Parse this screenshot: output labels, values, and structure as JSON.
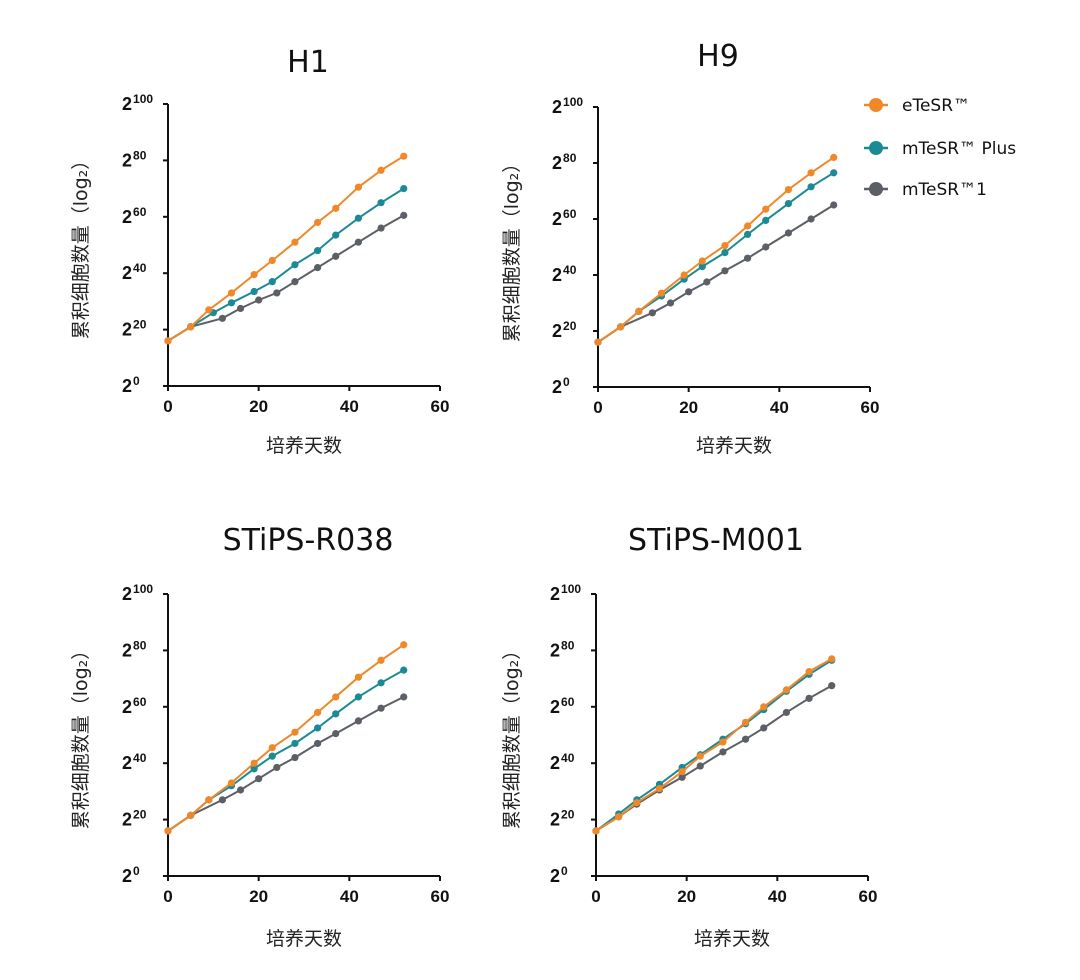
{
  "legend": [
    {
      "name": "eTeSR™",
      "color": "#f0882a"
    },
    {
      "name": "mTeSR™ Plus",
      "color": "#1b8a96"
    },
    {
      "name": "mTeSR™1",
      "color": "#5b5f66"
    }
  ],
  "chart_data": [
    {
      "type": "line",
      "title": "H1",
      "xlabel": "培养天数",
      "ylabel": "累积细胞数量",
      "ylabel_suffix": "（log₂）",
      "xlim": [
        0,
        60
      ],
      "ylim": [
        0,
        100
      ],
      "xticks": [
        "0",
        "20",
        "40",
        "60"
      ],
      "yticks": [
        {
          "base": "2",
          "exp": "0",
          "value": 0
        },
        {
          "base": "2",
          "exp": "20",
          "value": 20
        },
        {
          "base": "2",
          "exp": "40",
          "value": 40
        },
        {
          "base": "2",
          "exp": "60",
          "value": 60
        },
        {
          "base": "2",
          "exp": "80",
          "value": 80
        },
        {
          "base": "2",
          "exp": "100",
          "value": 100
        }
      ],
      "series": [
        {
          "name": "eTeSR™",
          "x": [
            0,
            5,
            9,
            14,
            19,
            23,
            28,
            33,
            37,
            42,
            47,
            52
          ],
          "y": [
            16,
            21,
            27,
            33,
            39.5,
            44.5,
            51,
            58,
            63,
            70.5,
            76.5,
            81.5
          ]
        },
        {
          "name": "mTeSR™ Plus",
          "x": [
            0,
            5,
            10,
            14,
            19,
            23,
            28,
            33,
            37,
            42,
            47,
            52
          ],
          "y": [
            16,
            21,
            26,
            29.5,
            33.5,
            37,
            43,
            48,
            53.5,
            59.5,
            65,
            70
          ]
        },
        {
          "name": "mTeSR™1",
          "x": [
            0,
            5,
            12,
            16,
            20,
            24,
            28,
            33,
            37,
            42,
            47,
            52
          ],
          "y": [
            16,
            21,
            24,
            27.5,
            30.5,
            33,
            37,
            42,
            46,
            51,
            56,
            60.5
          ]
        }
      ]
    },
    {
      "type": "line",
      "title": "H9",
      "xlabel": "培养天数",
      "ylabel": "累积细胞数量",
      "ylabel_suffix": "（log₂）",
      "xlim": [
        0,
        60
      ],
      "ylim": [
        0,
        100
      ],
      "xticks": [
        "0",
        "20",
        "40",
        "60"
      ],
      "yticks": [
        {
          "base": "2",
          "exp": "0",
          "value": 0
        },
        {
          "base": "2",
          "exp": "20",
          "value": 20
        },
        {
          "base": "2",
          "exp": "40",
          "value": 40
        },
        {
          "base": "2",
          "exp": "60",
          "value": 60
        },
        {
          "base": "2",
          "exp": "80",
          "value": 80
        },
        {
          "base": "2",
          "exp": "100",
          "value": 100
        }
      ],
      "series": [
        {
          "name": "eTeSR™",
          "x": [
            0,
            5,
            9,
            14,
            19,
            23,
            28,
            33,
            37,
            42,
            47,
            52
          ],
          "y": [
            16,
            21.5,
            27,
            33.5,
            40,
            45,
            50.5,
            57.5,
            63.5,
            70.5,
            76.5,
            82
          ]
        },
        {
          "name": "mTeSR™ Plus",
          "x": [
            0,
            5,
            9,
            14,
            19,
            23,
            28,
            33,
            37,
            42,
            47,
            52
          ],
          "y": [
            16,
            21.5,
            27,
            32.5,
            38.5,
            43,
            48,
            54.5,
            59.5,
            65.5,
            71.5,
            76.5
          ]
        },
        {
          "name": "mTeSR™1",
          "x": [
            0,
            5,
            12,
            16,
            20,
            24,
            28,
            33,
            37,
            42,
            47,
            52
          ],
          "y": [
            16,
            21.5,
            26.5,
            30,
            34,
            37.5,
            41.5,
            46,
            50,
            55,
            60,
            65
          ]
        }
      ]
    },
    {
      "type": "line",
      "title": "STiPS-R038",
      "xlabel": "培养天数",
      "ylabel": "累积细胞数量",
      "ylabel_suffix": "（log₂）",
      "xlim": [
        0,
        60
      ],
      "ylim": [
        0,
        100
      ],
      "xticks": [
        "0",
        "20",
        "40",
        "60"
      ],
      "yticks": [
        {
          "base": "2",
          "exp": "0",
          "value": 0
        },
        {
          "base": "2",
          "exp": "20",
          "value": 20
        },
        {
          "base": "2",
          "exp": "40",
          "value": 40
        },
        {
          "base": "2",
          "exp": "60",
          "value": 60
        },
        {
          "base": "2",
          "exp": "80",
          "value": 80
        },
        {
          "base": "2",
          "exp": "100",
          "value": 100
        }
      ],
      "series": [
        {
          "name": "eTeSR™",
          "x": [
            0,
            5,
            9,
            14,
            19,
            23,
            28,
            33,
            37,
            42,
            47,
            52
          ],
          "y": [
            16,
            21.5,
            27,
            33,
            40,
            45.5,
            51,
            58,
            63.5,
            70.5,
            76.5,
            82
          ]
        },
        {
          "name": "mTeSR™ Plus",
          "x": [
            0,
            5,
            9,
            14,
            19,
            23,
            28,
            33,
            37,
            42,
            47,
            52
          ],
          "y": [
            16,
            21.5,
            27,
            32,
            38,
            42.5,
            47,
            52.5,
            57.5,
            63.5,
            68.5,
            73
          ]
        },
        {
          "name": "mTeSR™1",
          "x": [
            0,
            5,
            12,
            16,
            20,
            24,
            28,
            33,
            37,
            42,
            47,
            52
          ],
          "y": [
            16,
            21.5,
            27,
            30.5,
            34.5,
            38.5,
            42,
            47,
            50.5,
            55,
            59.5,
            63.5
          ]
        }
      ]
    },
    {
      "type": "line",
      "title": "STiPS-M001",
      "xlabel": "培养天数",
      "ylabel": "累积细胞数量",
      "ylabel_suffix": "（log₂）",
      "xlim": [
        0,
        60
      ],
      "ylim": [
        0,
        100
      ],
      "xticks": [
        "0",
        "20",
        "40",
        "60"
      ],
      "yticks": [
        {
          "base": "2",
          "exp": "0",
          "value": 0
        },
        {
          "base": "2",
          "exp": "20",
          "value": 20
        },
        {
          "base": "2",
          "exp": "40",
          "value": 40
        },
        {
          "base": "2",
          "exp": "60",
          "value": 60
        },
        {
          "base": "2",
          "exp": "80",
          "value": 80
        },
        {
          "base": "2",
          "exp": "100",
          "value": 100
        }
      ],
      "series": [
        {
          "name": "eTeSR™",
          "x": [
            0,
            5,
            9,
            14,
            19,
            23,
            28,
            33,
            37,
            42,
            47,
            52
          ],
          "y": [
            16,
            21,
            26,
            31,
            37,
            42.5,
            47.5,
            54.5,
            60,
            66,
            72.5,
            77
          ]
        },
        {
          "name": "mTeSR™ Plus",
          "x": [
            0,
            5,
            9,
            14,
            19,
            23,
            28,
            33,
            37,
            42,
            47,
            52
          ],
          "y": [
            16,
            22,
            27,
            32.5,
            38.5,
            43,
            48.5,
            54,
            59,
            65.5,
            71.5,
            76.5
          ]
        },
        {
          "name": "mTeSR™1",
          "x": [
            0,
            5,
            9,
            14,
            19,
            23,
            28,
            33,
            37,
            42,
            47,
            52
          ],
          "y": [
            16,
            21,
            25.5,
            30.5,
            35,
            39,
            44,
            48.5,
            52.5,
            58,
            63,
            67.5
          ]
        }
      ]
    }
  ]
}
